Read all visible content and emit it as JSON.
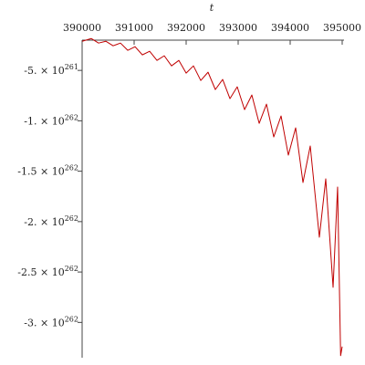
{
  "chart_data": {
    "type": "line",
    "x_label": "t",
    "x": [
      390000,
      390175,
      390316,
      390456,
      390596,
      390737,
      390877,
      391018,
      391158,
      391298,
      391439,
      391579,
      391719,
      391860,
      392000,
      392140,
      392281,
      392421,
      392561,
      392702,
      392842,
      392982,
      393123,
      393263,
      393404,
      393544,
      393684,
      393825,
      393965,
      394105,
      394246,
      394386,
      394561,
      394684,
      394825,
      394912,
      394970,
      395000
    ],
    "series": [
      {
        "color": "#c00000",
        "values": [
          -2.11e+261,
          -1.84e+261,
          -2.29e+261,
          -2.11e+261,
          -2.56e+261,
          -2.29e+261,
          -3.01e+261,
          -2.65e+261,
          -3.46e+261,
          -3.1e+261,
          -4.01e+261,
          -3.55e+261,
          -4.55e+261,
          -4.01e+261,
          -5.27e+261,
          -4.55e+261,
          -6e+261,
          -5.18e+261,
          -6.9e+261,
          -5.9e+261,
          -7.8e+261,
          -6.63e+261,
          -8.89e+261,
          -7.44e+261,
          -1.025e+262,
          -8.35e+261,
          -1.16e+262,
          -9.52e+261,
          -1.341e+262,
          -1.07e+262,
          -1.612e+262,
          -1.25e+262,
          -2.155e+262,
          -1.576e+262,
          -2.652e+262,
          -1.657e+262,
          -3.33e+262,
          -3.24e+262
        ]
      }
    ],
    "xlim": [
      390000,
      395000
    ],
    "xticks": [
      390000,
      391000,
      392000,
      393000,
      394000,
      395000
    ],
    "ylim": [
      -3.35e+262,
      -2e+261
    ],
    "yticks": [
      {
        "value": -5e+261,
        "label": "-5. × 10",
        "exponent": "261"
      },
      {
        "value": -1e+262,
        "label": "-1. × 10",
        "exponent": "262"
      },
      {
        "value": -1.5e+262,
        "label": "-1.5 × 10",
        "exponent": "262"
      },
      {
        "value": -2e+262,
        "label": "-2. × 10",
        "exponent": "262"
      },
      {
        "value": -2.5e+262,
        "label": "-2.5 × 10",
        "exponent": "262"
      },
      {
        "value": -3e+262,
        "label": "-3. × 10",
        "exponent": "262"
      }
    ]
  }
}
